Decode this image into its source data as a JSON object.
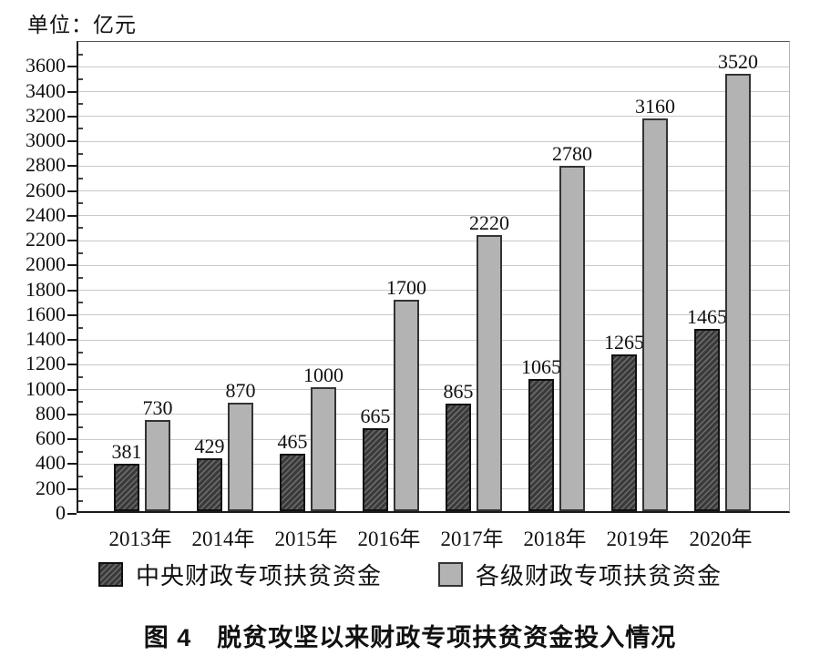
{
  "unit_label": "单位：亿元",
  "caption": "图 4　脱贫攻坚以来财政专项扶贫资金投入情况",
  "colors": {
    "dark_bar": "#3a3a3a",
    "dark_bar_hatch": "#6b6b6b",
    "gray_bar": "#b3b3b3",
    "bar_border_dark": "#111111",
    "bar_border_gray": "#333333",
    "gridline": "#c9c9c9",
    "axis": "#1a1a1a"
  },
  "chart_data": {
    "type": "bar",
    "categories": [
      "2013年",
      "2014年",
      "2015年",
      "2016年",
      "2017年",
      "2018年",
      "2019年",
      "2020年"
    ],
    "series": [
      {
        "key": "central-fiscal",
        "name": "中央财政专项扶贫资金",
        "style": "dark-hatched",
        "values": [
          381,
          429,
          465,
          665,
          865,
          1065,
          1265,
          1465
        ]
      },
      {
        "key": "all-levels-fiscal",
        "name": "各级财政专项扶贫资金",
        "style": "gray-solid",
        "values": [
          730,
          870,
          1000,
          1700,
          2220,
          2780,
          3160,
          3520
        ]
      }
    ],
    "title": "图 4　脱贫攻坚以来财政专项扶贫资金投入情况",
    "unit": "单位：亿元",
    "xlabel": "",
    "ylabel": "",
    "ylim": [
      0,
      3800
    ],
    "y_major_step": 200,
    "y_minor_step": 100,
    "y_tick_max_label": 3600,
    "y_tick_labels": [
      "0",
      "200",
      "400",
      "600",
      "800",
      "1000",
      "1200",
      "1400",
      "1600",
      "1800",
      "2000",
      "2200",
      "2400",
      "2600",
      "2800",
      "3000",
      "3200",
      "3400",
      "3600"
    ],
    "grid": true,
    "data_labels": true,
    "legend_position": "bottom"
  },
  "legend": {
    "items": [
      {
        "label": "中央财政专项扶贫资金",
        "swatch": "dark-hatched"
      },
      {
        "label": "各级财政专项扶贫资金",
        "swatch": "gray-solid"
      }
    ]
  }
}
